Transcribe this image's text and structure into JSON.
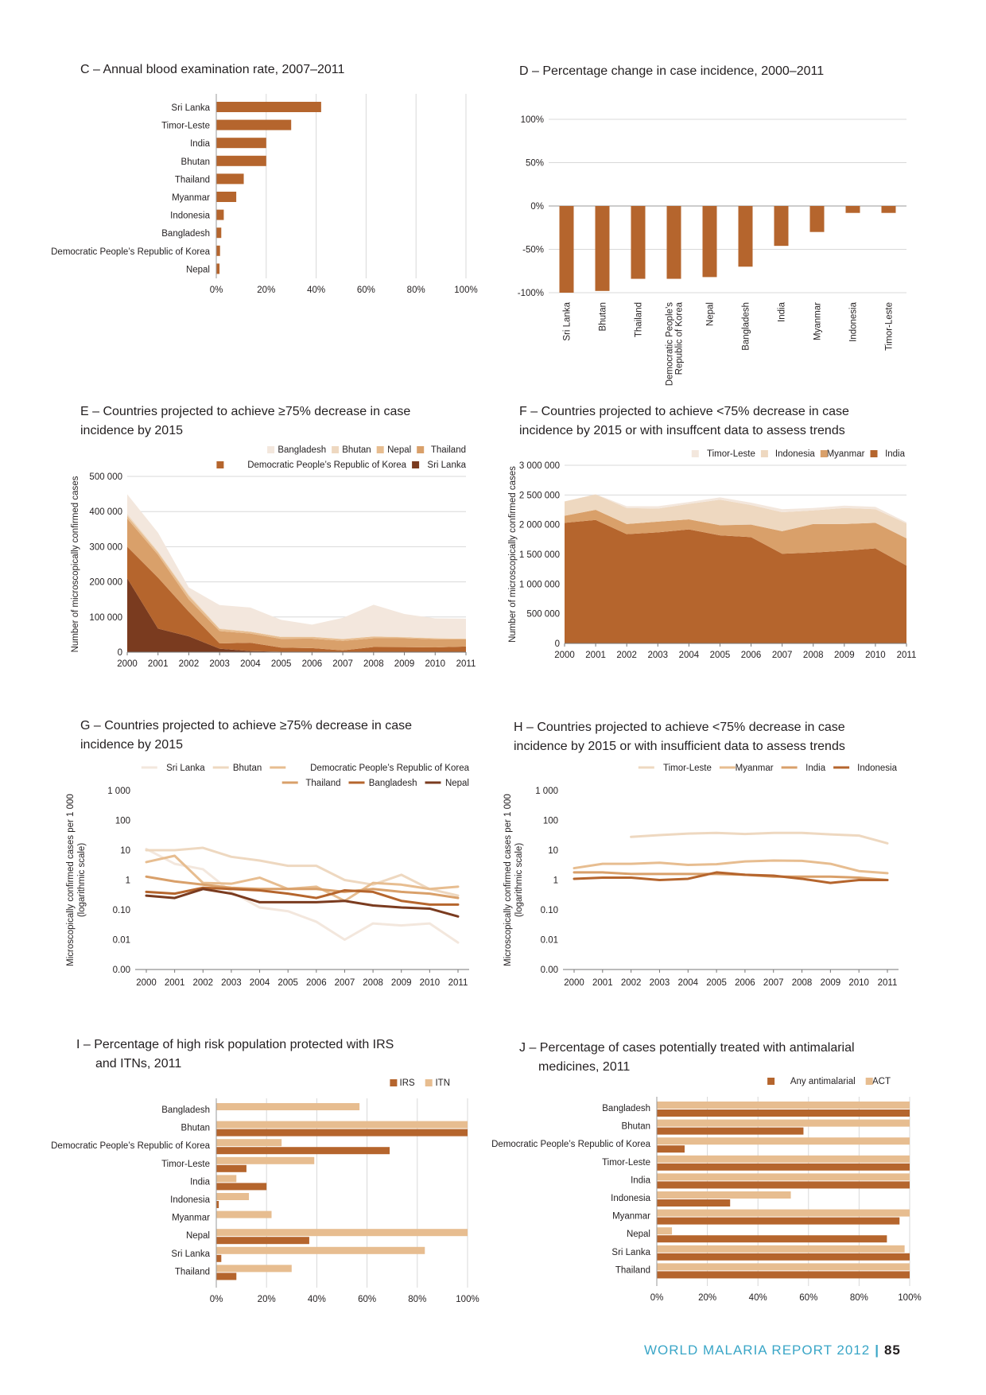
{
  "colors": {
    "dark": "#7a3b1f",
    "main": "#b5652d",
    "mid": "#d9a06a",
    "light": "#e7bd90",
    "pale": "#eed8c0",
    "palest": "#f3e7dd",
    "grid": "#d8d8d8",
    "footer_accent": "#3aa6c7"
  },
  "footer": {
    "report": "WORLD MALARIA REPORT 2012",
    "page": "85"
  },
  "chart_data": [
    {
      "id": "C",
      "type": "bar",
      "orientation": "horizontal",
      "title": "C – Annual blood examination rate, 2007–2011",
      "categories": [
        "Sri Lanka",
        "Timor-Leste",
        "India",
        "Bhutan",
        "Thailand",
        "Myanmar",
        "Indonesia",
        "Bangladesh",
        "Democratic People’s Republic of Korea",
        "Nepal"
      ],
      "values": [
        42,
        30,
        20,
        20,
        11,
        8,
        3,
        2,
        1.5,
        1.3
      ],
      "xlim": [
        0,
        100
      ],
      "ticks": [
        "0%",
        "20%",
        "40%",
        "60%",
        "80%",
        "100%"
      ],
      "grid": true
    },
    {
      "id": "D",
      "type": "bar",
      "orientation": "vertical",
      "title": "D –  Percentage change in case incidence, 2000–2011",
      "categories": [
        "Sri Lanka",
        "Bhutan",
        "Thailand",
        "Democratic People’s Republic of Korea",
        "Nepal",
        "Bangladesh",
        "India",
        "Myanmar",
        "Indonesia",
        "Timor-Leste"
      ],
      "values": [
        -100,
        -98,
        -84,
        -84,
        -82,
        -70,
        -46,
        -30,
        -8,
        -8
      ],
      "ylim": [
        -100,
        100
      ],
      "ticks": [
        "100%",
        "50%",
        "0%",
        "-50%",
        "-100%"
      ],
      "grid": true
    },
    {
      "id": "E",
      "type": "area",
      "stacked": true,
      "title_lines": [
        "E – Countries projected to achieve ≥75% decrease in case",
        "incidence by 2015"
      ],
      "ylabel": "Number of microscopically confirmed cases",
      "x": [
        "2000",
        "2001",
        "2002",
        "2003",
        "2004",
        "2005",
        "2006",
        "2007",
        "2008",
        "2009",
        "2010",
        "2011"
      ],
      "ylim": [
        0,
        500000
      ],
      "yticks": [
        "0",
        "100 000",
        "200 000",
        "300 000",
        "400 000",
        "500 000"
      ],
      "legend": [
        "Bangladesh",
        "Bhutan",
        "Nepal",
        "Thailand",
        "Democratic People’s Republic of Korea",
        "Sri Lanka"
      ],
      "series": [
        {
          "name": "Sri Lanka",
          "values": [
            210000,
            67000,
            45000,
            10000,
            3000,
            1000,
            500,
            200,
            670,
            560,
            680,
            170
          ]
        },
        {
          "name": "Democratic People’s Republic of Korea",
          "values": [
            90000,
            145000,
            70000,
            15000,
            24000,
            12000,
            11000,
            5000,
            14000,
            14000,
            13000,
            16000
          ]
        },
        {
          "name": "Thailand",
          "values": [
            80000,
            65000,
            35000,
            35000,
            26000,
            25000,
            27000,
            27000,
            25000,
            25000,
            23000,
            20000
          ]
        },
        {
          "name": "Nepal",
          "values": [
            8000,
            7000,
            10000,
            6000,
            5000,
            5000,
            5000,
            5000,
            5000,
            3000,
            3000,
            1900
          ]
        },
        {
          "name": "Bhutan",
          "values": [
            6000,
            3000,
            4000,
            2000,
            1000,
            1000,
            800,
            300,
            300,
            1000,
            500,
            200
          ]
        },
        {
          "name": "Bangladesh",
          "values": [
            55000,
            53000,
            20000,
            66000,
            68000,
            48000,
            34000,
            60000,
            90000,
            65000,
            56000,
            57000
          ]
        }
      ]
    },
    {
      "id": "F",
      "type": "area",
      "stacked": true,
      "title_lines": [
        "F – Countries projected to achieve <75% decrease in case",
        "incidence by 2015 or with insuffcent data to assess trends"
      ],
      "ylabel": "Number of microscopically confirmed cases",
      "x": [
        "2000",
        "2001",
        "2002",
        "2003",
        "2004",
        "2005",
        "2006",
        "2007",
        "2008",
        "2009",
        "2010",
        "2011"
      ],
      "ylim": [
        0,
        3000000
      ],
      "yticks": [
        "0",
        "500 000",
        "1 000 000",
        "1 500 000",
        "2 000 000",
        "2 500 000",
        "3 000 000"
      ],
      "legend": [
        "Timor-Leste",
        "Indonesia",
        "Myanmar",
        "India"
      ],
      "series": [
        {
          "name": "India",
          "values": [
            2030000,
            2080000,
            1840000,
            1870000,
            1920000,
            1820000,
            1790000,
            1510000,
            1530000,
            1560000,
            1600000,
            1310000
          ]
        },
        {
          "name": "Myanmar",
          "values": [
            120000,
            170000,
            170000,
            180000,
            170000,
            170000,
            210000,
            380000,
            480000,
            450000,
            430000,
            460000
          ]
        },
        {
          "name": "Indonesia",
          "values": [
            240000,
            260000,
            270000,
            220000,
            260000,
            430000,
            330000,
            320000,
            230000,
            270000,
            230000,
            250000
          ]
        },
        {
          "name": "Timor-Leste",
          "values": [
            3000,
            3000,
            30000,
            40000,
            30000,
            40000,
            40000,
            50000,
            40000,
            40000,
            40000,
            20000
          ]
        }
      ]
    },
    {
      "id": "G",
      "type": "line",
      "yscale": "log",
      "title_lines": [
        "G – Countries projected to achieve ≥75% decrease in case",
        "incidence by 2015"
      ],
      "ylabel_lines": [
        "Microscopically confirmed cases per 1 000",
        "(logarithmic scale)"
      ],
      "x": [
        "2000",
        "2001",
        "2002",
        "2003",
        "2004",
        "2005",
        "2006",
        "2007",
        "2008",
        "2009",
        "2010",
        "2011"
      ],
      "yticks": [
        "1 000",
        "100",
        "10",
        "1",
        "0.10",
        "0.01",
        "0.00"
      ],
      "legend": [
        "Sri Lanka",
        "Bhutan",
        "Democratic People’s Republic of Korea",
        "Thailand",
        "Bangladesh",
        "Nepal"
      ],
      "series": [
        {
          "name": "Sri Lanka",
          "values": [
            11,
            3.5,
            2.3,
            0.4,
            0.12,
            0.09,
            0.04,
            0.01,
            0.035,
            0.03,
            0.035,
            0.008
          ]
        },
        {
          "name": "Bhutan",
          "values": [
            10,
            10,
            12,
            6,
            4.5,
            3,
            3,
            1,
            0.7,
            1.5,
            0.5,
            0.3
          ]
        },
        {
          "name": "Democratic People’s Republic of Korea",
          "values": [
            4,
            6.5,
            0.8,
            0.75,
            1.2,
            0.5,
            0.6,
            0.2,
            0.8,
            0.7,
            0.5,
            0.6
          ]
        },
        {
          "name": "Thailand",
          "values": [
            1.3,
            0.9,
            0.7,
            0.55,
            0.5,
            0.5,
            0.5,
            0.4,
            0.5,
            0.4,
            0.35,
            0.25
          ]
        },
        {
          "name": "Bangladesh",
          "values": [
            0.4,
            0.35,
            0.55,
            0.5,
            0.45,
            0.35,
            0.25,
            0.45,
            0.4,
            0.2,
            0.15,
            0.15
          ]
        },
        {
          "name": "Nepal",
          "values": [
            0.3,
            0.25,
            0.5,
            0.35,
            0.18,
            0.18,
            0.18,
            0.2,
            0.14,
            0.12,
            0.11,
            0.06
          ]
        }
      ]
    },
    {
      "id": "H",
      "type": "line",
      "yscale": "log",
      "title_lines": [
        "H – Countries projected to achieve <75% decrease in case",
        "incidence by 2015 or with insufficient data to assess trends"
      ],
      "ylabel_lines": [
        "Microscopically confirmed cases per 1 000",
        "(logarithmic scale)"
      ],
      "x": [
        "2000",
        "2001",
        "2002",
        "2003",
        "2004",
        "2005",
        "2006",
        "2007",
        "2008",
        "2009",
        "2010",
        "2011"
      ],
      "yticks": [
        "1 000",
        "100",
        "10",
        "1",
        "0.10",
        "0.01",
        "0.00"
      ],
      "legend": [
        "Timor-Leste",
        "Myanmar",
        "India",
        "Indonesia"
      ],
      "series": [
        {
          "name": "Timor-Leste",
          "values": [
            null,
            null,
            28,
            32,
            36,
            38,
            35,
            38,
            38,
            34,
            31,
            17
          ]
        },
        {
          "name": "Myanmar",
          "values": [
            2.5,
            3.5,
            3.5,
            3.8,
            3.2,
            3.4,
            4.2,
            4.5,
            4.4,
            3.5,
            2,
            1.7
          ]
        },
        {
          "name": "India",
          "values": [
            1.8,
            1.8,
            1.6,
            1.6,
            1.6,
            1.6,
            1.5,
            1.3,
            1.3,
            1.3,
            1.2,
            1
          ]
        },
        {
          "name": "Indonesia",
          "values": [
            1.1,
            1.2,
            1.2,
            1,
            1.1,
            1.8,
            1.5,
            1.4,
            1.1,
            0.8,
            1,
            1
          ]
        }
      ]
    },
    {
      "id": "I",
      "type": "bar",
      "orientation": "horizontal",
      "grouped": true,
      "title_lines": [
        "I – Percentage of high risk population protected with IRS",
        "and ITNs, 2011"
      ],
      "categories": [
        "Bangladesh",
        "Bhutan",
        "Democratic People’s Republic of Korea",
        "Timor-Leste",
        "India",
        "Indonesia",
        "Myanmar",
        "Nepal",
        "Sri Lanka",
        "Thailand"
      ],
      "legend": [
        "IRS",
        "ITN"
      ],
      "series": [
        {
          "name": "ITN",
          "values": [
            57,
            100,
            26,
            39,
            8,
            13,
            22,
            100,
            83,
            30
          ]
        },
        {
          "name": "IRS",
          "values": [
            0,
            100,
            69,
            12,
            20,
            1,
            0,
            37,
            2,
            8
          ]
        }
      ],
      "xlim": [
        0,
        100
      ],
      "ticks": [
        "0%",
        "20%",
        "40%",
        "60%",
        "80%",
        "100%"
      ],
      "grid": true
    },
    {
      "id": "J",
      "type": "bar",
      "orientation": "horizontal",
      "grouped": true,
      "title_lines": [
        "J – Percentage of cases potentially treated with antimalarial",
        "medicines, 2011"
      ],
      "categories": [
        "Bangladesh",
        "Bhutan",
        "Democratic People’s Republic of Korea",
        "Timor-Leste",
        "India",
        "Indonesia",
        "Myanmar",
        "Nepal",
        "Sri Lanka",
        "Thailand"
      ],
      "legend": [
        "Any antimalarial",
        "ACT"
      ],
      "series": [
        {
          "name": "ACT",
          "values": [
            100,
            100,
            100,
            100,
            100,
            53,
            100,
            6,
            98,
            100
          ]
        },
        {
          "name": "Any antimalarial",
          "values": [
            100,
            58,
            11,
            100,
            100,
            29,
            96,
            91,
            100,
            100
          ]
        }
      ],
      "xlim": [
        0,
        100
      ],
      "ticks": [
        "0%",
        "20%",
        "40%",
        "60%",
        "80%",
        "100%"
      ],
      "grid": true
    }
  ]
}
